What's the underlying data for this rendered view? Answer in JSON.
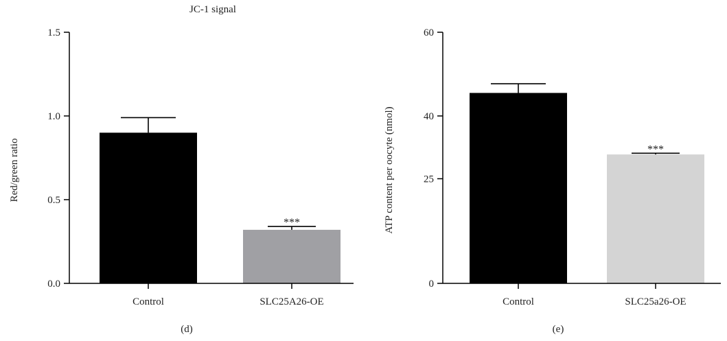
{
  "chart_data": [
    {
      "type": "bar",
      "title": "JC-1 signal",
      "panel_label": "(d)",
      "xlabel": "",
      "ylabel": "Red/green ratio",
      "ylim": [
        0,
        1.5
      ],
      "yticks": [
        0,
        0.5,
        1.0,
        1.5
      ],
      "ytick_labels": [
        "0.0",
        "0.5",
        "1.0",
        "1.5"
      ],
      "categories": [
        "Control",
        "SLC25A26-OE"
      ],
      "values": [
        0.9,
        0.32
      ],
      "errors": [
        0.09,
        0.02
      ],
      "colors": [
        "#000000",
        "#a0a0a4"
      ],
      "annotations": [
        "",
        "***"
      ]
    },
    {
      "type": "bar",
      "title": "",
      "panel_label": "(e)",
      "xlabel": "",
      "ylabel": "ATP content per oocyte (nmol)",
      "ylim": [
        0,
        60
      ],
      "yticks": [
        0,
        25,
        40,
        60
      ],
      "ytick_labels": [
        "0",
        "25",
        "40",
        "60"
      ],
      "categories": [
        "Control",
        "SLC25a26-OE"
      ],
      "values": [
        45.5,
        30.8
      ],
      "errors": [
        2.2,
        0.3
      ],
      "colors": [
        "#000000",
        "#d4d4d4"
      ],
      "annotations": [
        "",
        "***"
      ]
    }
  ]
}
